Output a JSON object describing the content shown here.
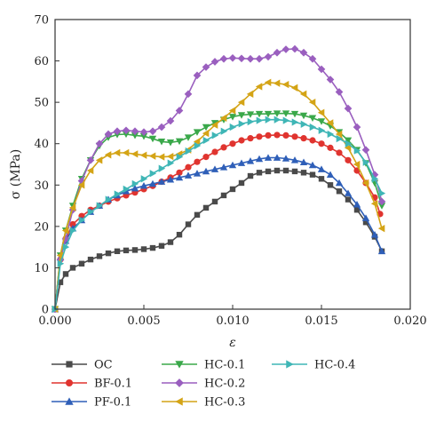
{
  "chart_data": {
    "type": "line",
    "xlabel": "ε",
    "ylabel": "σ (MPa)",
    "xlim": [
      0,
      0.02
    ],
    "ylim": [
      0,
      70
    ],
    "x_ticks": [
      "0.000",
      "0.005",
      "0.010",
      "0.015",
      "0.020"
    ],
    "y_ticks": [
      "0",
      "10",
      "20",
      "30",
      "40",
      "50",
      "60",
      "70"
    ],
    "grid": false,
    "legend_position": "bottom",
    "series": [
      {
        "name": "OC",
        "color": "#4a4a4a",
        "marker": "square",
        "x": [
          0,
          0.0003,
          0.0006,
          0.001,
          0.0015,
          0.002,
          0.0025,
          0.003,
          0.0035,
          0.004,
          0.0045,
          0.005,
          0.0055,
          0.006,
          0.0065,
          0.007,
          0.0075,
          0.008,
          0.0085,
          0.009,
          0.0095,
          0.01,
          0.0105,
          0.011,
          0.0115,
          0.012,
          0.0125,
          0.013,
          0.0135,
          0.014,
          0.0145,
          0.015,
          0.0155,
          0.016,
          0.0165,
          0.017,
          0.0175,
          0.018,
          0.0184
        ],
        "y": [
          0,
          6.5,
          8.5,
          10,
          11,
          12,
          12.8,
          13.5,
          14,
          14.2,
          14.3,
          14.5,
          14.8,
          15.3,
          16.2,
          18,
          20.5,
          22.8,
          24.5,
          26,
          27.5,
          29,
          30.5,
          32.2,
          33,
          33.3,
          33.5,
          33.5,
          33.3,
          33,
          32.5,
          31.5,
          30,
          28.5,
          26.5,
          24,
          21,
          17.5,
          14
        ]
      },
      {
        "name": "BF-0.1",
        "color": "#e0342f",
        "marker": "circle",
        "x": [
          0,
          0.0003,
          0.0006,
          0.001,
          0.0015,
          0.002,
          0.0025,
          0.003,
          0.0035,
          0.004,
          0.0045,
          0.005,
          0.0055,
          0.006,
          0.0065,
          0.007,
          0.0075,
          0.008,
          0.0085,
          0.009,
          0.0095,
          0.01,
          0.0105,
          0.011,
          0.0115,
          0.012,
          0.0125,
          0.013,
          0.0135,
          0.014,
          0.0145,
          0.015,
          0.0155,
          0.016,
          0.0165,
          0.017,
          0.0175,
          0.018,
          0.0183
        ],
        "y": [
          0,
          12,
          17,
          20.5,
          22.5,
          24,
          25,
          26,
          26.8,
          27.5,
          28.2,
          29,
          29.8,
          30.8,
          31.8,
          33,
          34.3,
          35.6,
          36.8,
          38,
          39.1,
          40,
          40.8,
          41.3,
          41.7,
          42,
          42.1,
          42,
          41.7,
          41.3,
          40.8,
          40,
          39,
          37.8,
          36,
          33.5,
          30.5,
          27,
          23
        ]
      },
      {
        "name": "PF-0.1",
        "color": "#2f5fb8",
        "marker": "triangle-up",
        "x": [
          0,
          0.0003,
          0.0006,
          0.001,
          0.0015,
          0.002,
          0.0025,
          0.003,
          0.0035,
          0.004,
          0.0045,
          0.005,
          0.0055,
          0.006,
          0.0065,
          0.007,
          0.0075,
          0.008,
          0.0085,
          0.009,
          0.0095,
          0.01,
          0.0105,
          0.011,
          0.0115,
          0.012,
          0.0125,
          0.013,
          0.0135,
          0.014,
          0.0145,
          0.015,
          0.0155,
          0.016,
          0.0165,
          0.017,
          0.0175,
          0.018,
          0.0184
        ],
        "y": [
          0,
          12.5,
          16.5,
          19.5,
          21.5,
          23.5,
          25,
          26.5,
          27.5,
          28.5,
          29.2,
          29.8,
          30.3,
          30.8,
          31.3,
          31.8,
          32.3,
          32.8,
          33.3,
          33.8,
          34.3,
          34.8,
          35.3,
          35.8,
          36.3,
          36.6,
          36.6,
          36.4,
          36,
          35.5,
          34.8,
          33.8,
          32.5,
          30.5,
          28,
          25.3,
          22,
          18,
          14
        ]
      },
      {
        "name": "HC-0.1",
        "color": "#3aa84a",
        "marker": "triangle-down",
        "x": [
          0,
          0.0003,
          0.0006,
          0.001,
          0.0015,
          0.002,
          0.0025,
          0.003,
          0.0035,
          0.004,
          0.0045,
          0.005,
          0.0055,
          0.006,
          0.0065,
          0.007,
          0.0075,
          0.008,
          0.0085,
          0.009,
          0.0095,
          0.01,
          0.0105,
          0.011,
          0.0115,
          0.012,
          0.0125,
          0.013,
          0.0135,
          0.014,
          0.0145,
          0.015,
          0.0155,
          0.016,
          0.0165,
          0.017,
          0.0175,
          0.018,
          0.0184
        ],
        "y": [
          0,
          13,
          19,
          25,
          31.5,
          36,
          39.5,
          41.5,
          42.2,
          42.3,
          42,
          41.8,
          41.2,
          40.5,
          40.3,
          40.6,
          41.5,
          42.8,
          44,
          45,
          45.8,
          46.5,
          46.9,
          47.1,
          47.2,
          47.2,
          47.3,
          47.3,
          47.2,
          46.8,
          46.2,
          45.4,
          44.3,
          42.8,
          40.8,
          38.5,
          35.3,
          30.5,
          25
        ]
      },
      {
        "name": "HC-0.2",
        "color": "#9a5fbf",
        "marker": "diamond",
        "x": [
          0,
          0.0003,
          0.0006,
          0.001,
          0.0015,
          0.002,
          0.0025,
          0.003,
          0.0035,
          0.004,
          0.0045,
          0.005,
          0.0055,
          0.006,
          0.0065,
          0.007,
          0.0075,
          0.008,
          0.0085,
          0.009,
          0.0095,
          0.01,
          0.0105,
          0.011,
          0.0115,
          0.012,
          0.0125,
          0.013,
          0.0135,
          0.014,
          0.0145,
          0.015,
          0.0155,
          0.016,
          0.0165,
          0.017,
          0.0175,
          0.018,
          0.0184
        ],
        "y": [
          0,
          12,
          17,
          24,
          31,
          36,
          40,
          42.3,
          43,
          43.2,
          43,
          42.8,
          43,
          44,
          45.5,
          48,
          52,
          56.5,
          58.5,
          59.8,
          60.5,
          60.7,
          60.6,
          60.5,
          60.5,
          61,
          62,
          62.8,
          62.9,
          62,
          60.5,
          58,
          55.5,
          52.5,
          48.5,
          44,
          38.5,
          32.5,
          26
        ]
      },
      {
        "name": "HC-0.3",
        "color": "#d4a416",
        "marker": "triangle-left",
        "x": [
          0,
          0.0003,
          0.0006,
          0.001,
          0.0015,
          0.002,
          0.0025,
          0.003,
          0.0035,
          0.004,
          0.0045,
          0.005,
          0.0055,
          0.006,
          0.0065,
          0.007,
          0.0075,
          0.008,
          0.0085,
          0.009,
          0.0095,
          0.01,
          0.0105,
          0.011,
          0.0115,
          0.012,
          0.0125,
          0.013,
          0.0135,
          0.014,
          0.0145,
          0.015,
          0.0155,
          0.016,
          0.0165,
          0.017,
          0.0175,
          0.018,
          0.0184
        ],
        "y": [
          0,
          13,
          19,
          24.5,
          30,
          33.5,
          36,
          37.3,
          37.8,
          37.8,
          37.5,
          37.2,
          37,
          36.8,
          36.9,
          37.5,
          38.5,
          40.5,
          42.5,
          44.5,
          46.2,
          48,
          50,
          52,
          53.8,
          54.8,
          54.6,
          54.3,
          53.5,
          52,
          50,
          47.5,
          45,
          42.3,
          39,
          35,
          30.5,
          25.5,
          19.5
        ]
      },
      {
        "name": "HC-0.4",
        "color": "#3fb6b6",
        "marker": "triangle-right",
        "x": [
          0,
          0.0003,
          0.0006,
          0.001,
          0.0015,
          0.002,
          0.0025,
          0.003,
          0.0035,
          0.004,
          0.0045,
          0.005,
          0.0055,
          0.006,
          0.0065,
          0.007,
          0.0075,
          0.008,
          0.0085,
          0.009,
          0.0095,
          0.01,
          0.0105,
          0.011,
          0.0115,
          0.012,
          0.0125,
          0.013,
          0.0135,
          0.014,
          0.0145,
          0.015,
          0.0155,
          0.016,
          0.0165,
          0.017,
          0.0175,
          0.018,
          0.0184
        ],
        "y": [
          0,
          11,
          15,
          19,
          21.5,
          23.5,
          25,
          26.5,
          27.8,
          29,
          30.3,
          31.5,
          32.8,
          34,
          35.3,
          36.8,
          38.2,
          39.5,
          40.8,
          42,
          43,
          44,
          44.8,
          45.3,
          45.6,
          45.8,
          45.8,
          45.6,
          45.2,
          44.7,
          44,
          43.2,
          42.3,
          41.2,
          40,
          38.3,
          35.5,
          31.5,
          28
        ]
      }
    ]
  }
}
